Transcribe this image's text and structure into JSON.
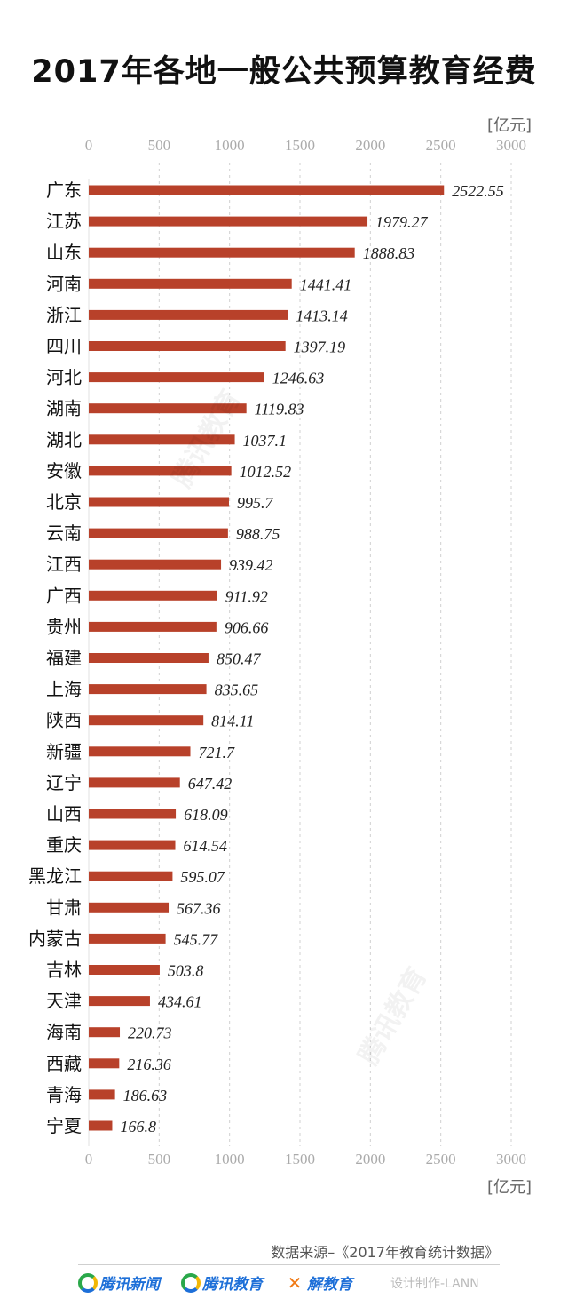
{
  "title": "2017年各地一般公共预算教育经费",
  "unit_label": "[亿元]",
  "source_text": "数据来源–《2017年教育统计数据》",
  "brands": [
    "腾讯新闻",
    "腾讯教育",
    "解教育"
  ],
  "brand_icons": [
    "tencent-news-logo-icon",
    "tencent-education-logo-icon",
    "jie-education-logo-icon"
  ],
  "credit": "设计制作-LANN",
  "watermark_text": "腾讯教育",
  "colors": {
    "bar": "#b8412a",
    "grid": "#d0d0d0",
    "tick": "#aaaaaa",
    "label": "#111111",
    "value": "#222222"
  },
  "chart_data": {
    "type": "bar",
    "orientation": "horizontal",
    "title": "2017年各地一般公共预算教育经费",
    "xlabel": "[亿元]",
    "xlim": [
      0,
      3000
    ],
    "xticks": [
      0,
      500,
      1000,
      1500,
      2000,
      2500,
      3000
    ],
    "xtick_labels": [
      "0",
      "500",
      "1000",
      "1500",
      "2000",
      "2500",
      "3000"
    ],
    "grid": true,
    "categories": [
      "广东",
      "江苏",
      "山东",
      "河南",
      "浙江",
      "四川",
      "河北",
      "湖南",
      "湖北",
      "安徽",
      "北京",
      "云南",
      "江西",
      "广西",
      "贵州",
      "福建",
      "上海",
      "陕西",
      "新疆",
      "辽宁",
      "山西",
      "重庆",
      "黑龙江",
      "甘肃",
      "内蒙古",
      "吉林",
      "天津",
      "海南",
      "西藏",
      "青海",
      "宁夏"
    ],
    "values": [
      2522.55,
      1979.27,
      1888.83,
      1441.41,
      1413.14,
      1397.19,
      1246.63,
      1119.83,
      1037.1,
      1012.52,
      995.7,
      988.75,
      939.42,
      911.92,
      906.66,
      850.47,
      835.65,
      814.11,
      721.7,
      647.42,
      618.09,
      614.54,
      595.07,
      567.36,
      545.77,
      503.8,
      434.61,
      220.73,
      216.36,
      186.63,
      166.8
    ],
    "value_labels": [
      "2522.55",
      "1979.27",
      "1888.83",
      "1441.41",
      "1413.14",
      "1397.19",
      "1246.63",
      "1119.83",
      "1037.1",
      "1012.52",
      "995.7",
      "988.75",
      "939.42",
      "911.92",
      "906.66",
      "850.47",
      "835.65",
      "814.11",
      "721.7",
      "647.42",
      "618.09",
      "614.54",
      "595.07",
      "567.36",
      "545.77",
      "503.8",
      "434.61",
      "220.73",
      "216.36",
      "186.63",
      "166.8"
    ]
  }
}
